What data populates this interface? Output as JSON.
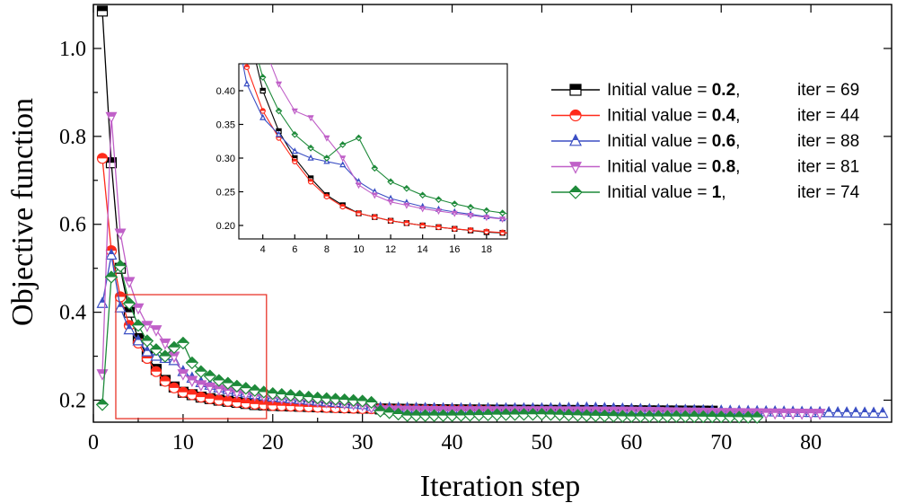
{
  "chart_data": {
    "type": "line",
    "title": "",
    "xlabel": "Iteration step",
    "ylabel": "Objective function",
    "xlim": [
      0,
      89
    ],
    "ylim": [
      0.15,
      1.1
    ],
    "xticks": [
      0,
      10,
      20,
      30,
      40,
      50,
      60,
      70,
      80
    ],
    "xtick_labels": [
      "0",
      "10",
      "20",
      "30",
      "40",
      "50",
      "60",
      "70",
      "80"
    ],
    "yticks": [
      0.2,
      0.4,
      0.6,
      0.8,
      1.0
    ],
    "ytick_labels": [
      "0.2",
      "0.4",
      "0.6",
      "0.8",
      "1.0"
    ],
    "legend_position": "top-right",
    "series": [
      {
        "name": "Initial value = 0.2,",
        "init_prefix": "Initial value = ",
        "init_value": "0.2",
        "init_suffix": ",",
        "iter_label": "iter = 69",
        "color": "#000000",
        "marker": "square",
        "key_points": [
          [
            1,
            1.085
          ],
          [
            2,
            0.74
          ],
          [
            3,
            0.5
          ],
          [
            4,
            0.4
          ],
          [
            5,
            0.34
          ],
          [
            6,
            0.3
          ],
          [
            7,
            0.27
          ],
          [
            8,
            0.245
          ],
          [
            9,
            0.23
          ],
          [
            10,
            0.218
          ],
          [
            12,
            0.207
          ],
          [
            14,
            0.2
          ],
          [
            16,
            0.195
          ],
          [
            18,
            0.19
          ],
          [
            20,
            0.188
          ],
          [
            25,
            0.185
          ],
          [
            30,
            0.182
          ],
          [
            31,
            0.182
          ],
          [
            32,
            0.18
          ],
          [
            40,
            0.178
          ],
          [
            50,
            0.177
          ],
          [
            60,
            0.176
          ],
          [
            69,
            0.175
          ]
        ]
      },
      {
        "name": "Initial value = 0.4,",
        "init_prefix": "Initial value = ",
        "init_value": "0.4",
        "init_suffix": ",",
        "iter_label": "iter = 44",
        "color": "#ff2a1a",
        "marker": "circle",
        "key_points": [
          [
            1,
            0.75
          ],
          [
            2,
            0.54
          ],
          [
            3,
            0.435
          ],
          [
            4,
            0.37
          ],
          [
            5,
            0.33
          ],
          [
            6,
            0.295
          ],
          [
            7,
            0.265
          ],
          [
            8,
            0.243
          ],
          [
            9,
            0.228
          ],
          [
            10,
            0.218
          ],
          [
            12,
            0.207
          ],
          [
            14,
            0.2
          ],
          [
            16,
            0.195
          ],
          [
            18,
            0.191
          ],
          [
            20,
            0.188
          ],
          [
            25,
            0.184
          ],
          [
            30,
            0.181
          ],
          [
            35,
            0.179
          ],
          [
            40,
            0.178
          ],
          [
            44,
            0.177
          ]
        ]
      },
      {
        "name": "Initial value = 0.6,",
        "init_prefix": "Initial value = ",
        "init_value": "0.6",
        "init_suffix": ",",
        "iter_label": "iter = 88",
        "color": "#3b4fc4",
        "marker": "triangle-up",
        "key_points": [
          [
            1,
            0.42
          ],
          [
            2,
            0.53
          ],
          [
            3,
            0.41
          ],
          [
            4,
            0.36
          ],
          [
            5,
            0.335
          ],
          [
            6,
            0.31
          ],
          [
            7,
            0.3
          ],
          [
            8,
            0.295
          ],
          [
            9,
            0.29
          ],
          [
            10,
            0.265
          ],
          [
            11,
            0.25
          ],
          [
            12,
            0.24
          ],
          [
            14,
            0.228
          ],
          [
            16,
            0.22
          ],
          [
            18,
            0.213
          ],
          [
            20,
            0.207
          ],
          [
            25,
            0.198
          ],
          [
            30,
            0.19
          ],
          [
            32,
            0.182
          ],
          [
            40,
            0.18
          ],
          [
            50,
            0.18
          ],
          [
            55,
            0.182
          ],
          [
            60,
            0.179
          ],
          [
            70,
            0.175
          ],
          [
            80,
            0.172
          ],
          [
            88,
            0.17
          ]
        ]
      },
      {
        "name": "Initial value = 0.8,",
        "init_prefix": "Initial value = ",
        "init_value": "0.8",
        "init_suffix": ",",
        "iter_label": "iter = 81",
        "color": "#c060c8",
        "marker": "triangle-down",
        "key_points": [
          [
            1,
            0.26
          ],
          [
            2,
            0.845
          ],
          [
            3,
            0.58
          ],
          [
            4,
            0.47
          ],
          [
            5,
            0.41
          ],
          [
            6,
            0.37
          ],
          [
            7,
            0.36
          ],
          [
            8,
            0.33
          ],
          [
            9,
            0.3
          ],
          [
            10,
            0.26
          ],
          [
            11,
            0.245
          ],
          [
            12,
            0.235
          ],
          [
            14,
            0.225
          ],
          [
            16,
            0.218
          ],
          [
            18,
            0.212
          ],
          [
            20,
            0.207
          ],
          [
            25,
            0.198
          ],
          [
            30,
            0.19
          ],
          [
            32,
            0.178
          ],
          [
            40,
            0.176
          ],
          [
            50,
            0.176
          ],
          [
            60,
            0.175
          ],
          [
            70,
            0.172
          ],
          [
            81,
            0.17
          ]
        ]
      },
      {
        "name": "Initial value = 1,",
        "init_prefix": "Initial value = ",
        "init_value": "1",
        "init_suffix": ",",
        "iter_label": "iter = 74",
        "color": "#1e8a3a",
        "marker": "diamond",
        "key_points": [
          [
            1,
            0.19
          ],
          [
            2,
            0.48
          ],
          [
            3,
            0.505
          ],
          [
            4,
            0.42
          ],
          [
            5,
            0.37
          ],
          [
            6,
            0.335
          ],
          [
            7,
            0.315
          ],
          [
            8,
            0.3
          ],
          [
            9,
            0.32
          ],
          [
            10,
            0.33
          ],
          [
            11,
            0.285
          ],
          [
            12,
            0.265
          ],
          [
            14,
            0.245
          ],
          [
            16,
            0.232
          ],
          [
            18,
            0.222
          ],
          [
            20,
            0.215
          ],
          [
            25,
            0.205
          ],
          [
            30,
            0.198
          ],
          [
            31,
            0.195
          ],
          [
            32,
            0.175
          ],
          [
            35,
            0.165
          ],
          [
            40,
            0.165
          ],
          [
            45,
            0.167
          ],
          [
            50,
            0.168
          ],
          [
            55,
            0.165
          ],
          [
            60,
            0.163
          ],
          [
            65,
            0.163
          ],
          [
            70,
            0.162
          ],
          [
            74,
            0.161
          ]
        ]
      }
    ],
    "zoom_box": {
      "x": [
        2.5,
        19.3
      ],
      "y": [
        0.158,
        0.44
      ]
    },
    "inset": {
      "xlim": [
        2.5,
        19.3
      ],
      "ylim": [
        0.18,
        0.44
      ],
      "xticks": [
        4,
        6,
        8,
        10,
        12,
        14,
        16,
        18
      ],
      "xtick_labels": [
        "4",
        "6",
        "8",
        "10",
        "12",
        "14",
        "16",
        "18"
      ],
      "yticks": [
        0.2,
        0.25,
        0.3,
        0.35,
        0.4
      ],
      "ytick_labels": [
        "0.20",
        "0.25",
        "0.30",
        "0.35",
        "0.40"
      ]
    }
  }
}
